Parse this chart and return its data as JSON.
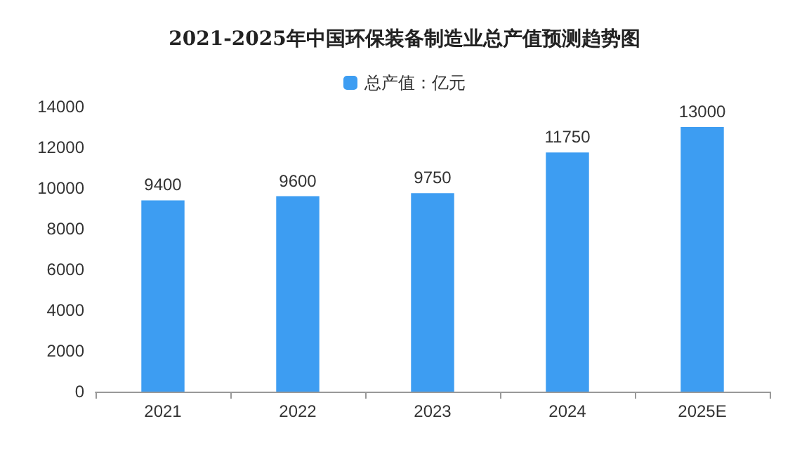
{
  "chart_data": {
    "type": "bar",
    "title": "2021-2025年中国环保装备制造业总产值预测趋势图",
    "categories": [
      "2021",
      "2022",
      "2023",
      "2024",
      "2025E"
    ],
    "series": [
      {
        "name": "总产值：亿元",
        "color": "#3d9df2",
        "values": [
          9400,
          9600,
          9750,
          11750,
          13000
        ]
      }
    ],
    "ylim": [
      0,
      14000
    ],
    "yticks": [
      0,
      2000,
      4000,
      6000,
      8000,
      10000,
      12000,
      14000
    ],
    "grid": false,
    "legend": "top",
    "data_labels": true
  }
}
